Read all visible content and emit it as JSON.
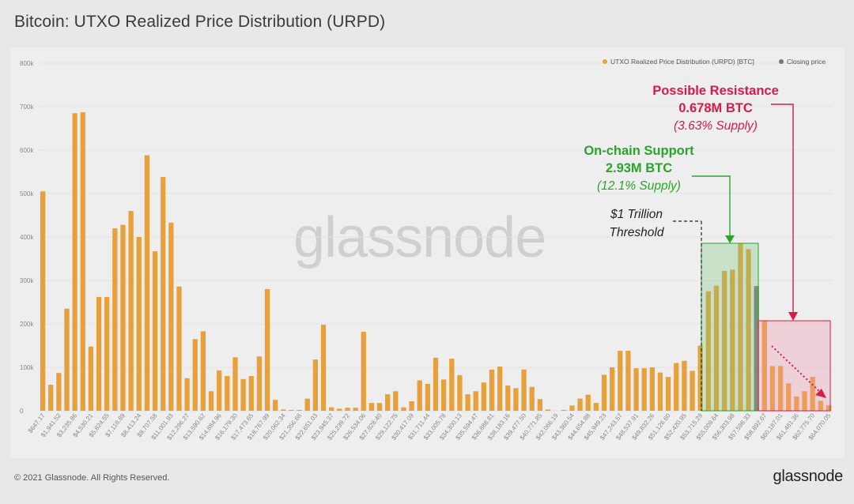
{
  "header": {
    "title": "Bitcoin: UTXO Realized Price Distribution (URPD)"
  },
  "footer": {
    "copyright": "© 2021 Glassnode. All Rights Reserved.",
    "logo": "glassnode"
  },
  "watermark": "glassnode",
  "legend": {
    "position": "top-right",
    "items": [
      {
        "label": "UTXO Realized Price Distribution (URPD) [BTC]",
        "color": "#e8a13a"
      },
      {
        "label": "Closing price",
        "color": "#777777"
      }
    ]
  },
  "annotations": {
    "resistance": {
      "line1": "Possible Resistance",
      "line2": "0.678M BTC",
      "line3": "(3.63% Supply)",
      "color": "#d81b4a"
    },
    "support": {
      "line1": "On-chain Support",
      "line2": "2.93M BTC",
      "line3": "(12.1% Supply)",
      "color": "#2aa52a"
    },
    "threshold": {
      "line1": "$1 Trillion",
      "line2": "Threshold"
    }
  },
  "chart_data": {
    "type": "bar",
    "ylim": [
      0,
      800000
    ],
    "y_ticks": [
      "0",
      "100k",
      "200k",
      "300k",
      "400k",
      "500k",
      "600k",
      "700k",
      "800k"
    ],
    "x_tick_labels": [
      "$647.17",
      "$1,941.52",
      "$3,235.86",
      "$4,530.21",
      "$5,824.55",
      "$7,118.89",
      "$8,413.24",
      "$9,707.58",
      "$11,001.93",
      "$12,296.27",
      "$13,590.62",
      "$14,884.96",
      "$16,179.30",
      "$17,473.65",
      "$18,767.99",
      "$20,062.34",
      "$21,356.68",
      "$22,651.03",
      "$23,945.37",
      "$25,239.72",
      "$26,534.06",
      "$27,828.40",
      "$29,122.75",
      "$30,417.09",
      "$31,711.44",
      "$33,005.78",
      "$34,300.13",
      "$35,594.47",
      "$36,888.81",
      "$38,183.16",
      "$39,477.50",
      "$40,771.85",
      "$42,066.19",
      "$43,360.54",
      "$44,654.88",
      "$45,949.23",
      "$47,243.57",
      "$48,537.91",
      "$49,832.26",
      "$51,126.60",
      "$52,420.95",
      "$53,715.29",
      "$55,009.64",
      "$56,303.98",
      "$57,598.33",
      "$58,892.67",
      "$60,187.01",
      "$61,481.36",
      "$62,775.70",
      "$64,070.05"
    ],
    "series": [
      {
        "name": "UTXO Realized Price Distribution (URPD) [BTC]",
        "values": [
          505000,
          60000,
          87000,
          235000,
          685000,
          687000,
          148000,
          262000,
          262000,
          420000,
          428000,
          460000,
          400000,
          588000,
          367000,
          538000,
          433000,
          286000,
          75000,
          165000,
          183000,
          45000,
          93000,
          80000,
          123000,
          73000,
          80000,
          125000,
          280000,
          25000,
          3000,
          2000,
          2000,
          28000,
          118000,
          198000,
          8000,
          5000,
          7000,
          7000,
          182000,
          18000,
          18000,
          38000,
          45000,
          8000,
          22000,
          70000,
          62000,
          122000,
          72000,
          120000,
          82000,
          38000,
          45000,
          65000,
          95000,
          102000,
          58000,
          52000,
          95000,
          55000,
          27000,
          3000,
          0,
          2000,
          12000,
          28000,
          37000,
          18000,
          83000,
          100000,
          138000,
          138000,
          98000,
          98000,
          100000,
          88000,
          78000,
          110000,
          115000,
          92000,
          150000,
          275000,
          288000,
          322000,
          325000,
          385000,
          372000,
          0,
          208000,
          103000,
          103000,
          63000,
          33000,
          45000,
          78000,
          23000,
          13000
        ],
        "color": "#e8a13a"
      },
      {
        "name": "Closing price",
        "index": 89,
        "value": 287000,
        "color": "#777777"
      }
    ]
  }
}
